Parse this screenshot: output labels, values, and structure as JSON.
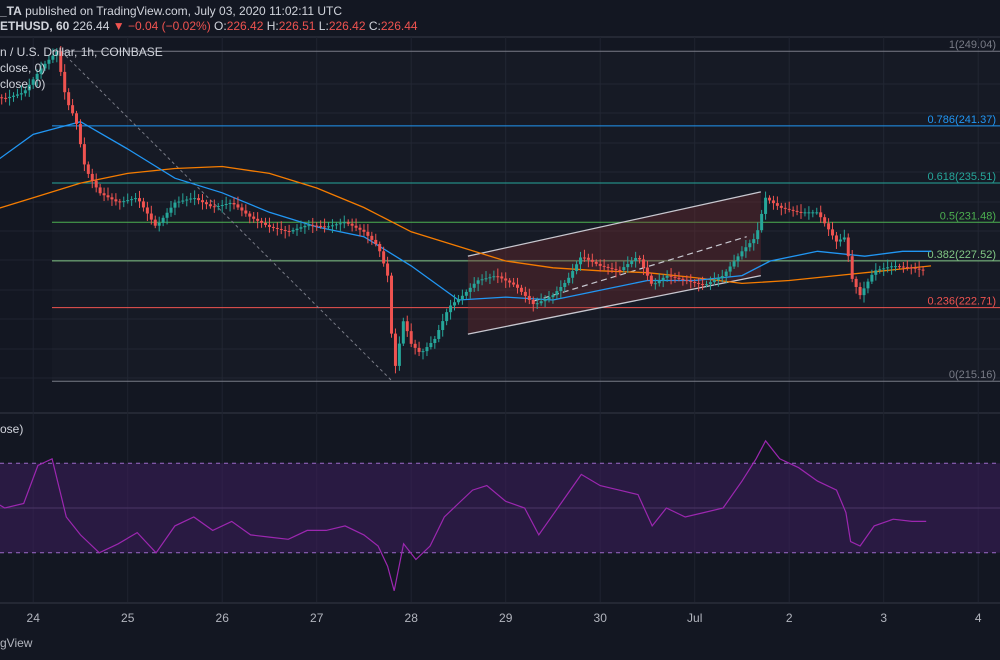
{
  "header": {
    "author_suffix": "_TA",
    "published_text": "published on TradingView.com, July 03, 2020 11:02:11 UTC",
    "symbol": "ETHUSD, 60",
    "last": "226.44",
    "change": "▼ −0.04 (−0.02%)",
    "o_label": "O:",
    "o_value": "226.42",
    "h_label": "H:",
    "h_value": "226.51",
    "l_label": "L:",
    "l_value": "226.42",
    "c_label": "C:",
    "c_value": "226.44"
  },
  "legend": {
    "title": "n / U.S. Dollar, 1h, COINBASE",
    "ma1": "close, 0)",
    "ma2": "close, 0)",
    "rsi": "ose)"
  },
  "footer": {
    "brand": "gView"
  },
  "colors": {
    "up": "#26a69a",
    "down": "#ef5350",
    "ma_blue": "#2196f3",
    "ma_orange": "#f57c00",
    "rsi_line": "#9c27b0",
    "rsi_band": "#3c1d5c",
    "channel": "#c8c8d0"
  },
  "chart_data": [
    {
      "type": "line",
      "subtype": "candlestick",
      "x_tick_labels": [
        "24",
        "25",
        "26",
        "27",
        "28",
        "29",
        "30",
        "Jul",
        "2",
        "3",
        "4"
      ],
      "ylim": [
        212,
        250.5
      ],
      "fib_levels": [
        {
          "ratio": "1",
          "value": 249.04,
          "label": "1(249.04)",
          "color": "#787b86"
        },
        {
          "ratio": "0.786",
          "value": 241.37,
          "label": "0.786(241.37)",
          "color": "#2196f3"
        },
        {
          "ratio": "0.618",
          "value": 235.51,
          "label": "0.618(235.51)",
          "color": "#26a69a"
        },
        {
          "ratio": "0.5",
          "value": 231.48,
          "label": "0.5(231.48)",
          "color": "#4caf50"
        },
        {
          "ratio": "0.382",
          "value": 227.52,
          "label": "0.382(227.52)",
          "color": "#81c784"
        },
        {
          "ratio": "0.236",
          "value": 222.71,
          "label": "0.236(222.71)",
          "color": "#ef5350"
        },
        {
          "ratio": "0",
          "value": 215.16,
          "label": "0(215.16)",
          "color": "#787b86"
        }
      ],
      "price_path": [
        [
          23.5,
          244.5
        ],
        [
          23.7,
          244.2
        ],
        [
          23.9,
          244.8
        ],
        [
          24.1,
          247.5
        ],
        [
          24.25,
          249.0
        ],
        [
          24.35,
          244.0
        ],
        [
          24.45,
          242.0
        ],
        [
          24.55,
          237.0
        ],
        [
          24.7,
          234.5
        ],
        [
          24.9,
          233.5
        ],
        [
          25.1,
          234.0
        ],
        [
          25.3,
          231.0
        ],
        [
          25.5,
          233.5
        ],
        [
          25.7,
          234.0
        ],
        [
          25.9,
          233.0
        ],
        [
          26.1,
          233.5
        ],
        [
          26.3,
          232.0
        ],
        [
          26.5,
          231.0
        ],
        [
          26.7,
          230.5
        ],
        [
          26.9,
          231.2
        ],
        [
          27.1,
          231.0
        ],
        [
          27.3,
          231.5
        ],
        [
          27.5,
          230.5
        ],
        [
          27.65,
          229.0
        ],
        [
          27.75,
          226.0
        ],
        [
          27.82,
          216.0
        ],
        [
          27.92,
          221.5
        ],
        [
          28.0,
          219.0
        ],
        [
          28.1,
          218.0
        ],
        [
          28.25,
          219.5
        ],
        [
          28.4,
          222.8
        ],
        [
          28.55,
          224.0
        ],
        [
          28.7,
          225.5
        ],
        [
          28.9,
          226.0
        ],
        [
          29.1,
          225.0
        ],
        [
          29.3,
          223.0
        ],
        [
          29.5,
          224.0
        ],
        [
          29.65,
          225.5
        ],
        [
          29.8,
          228.0
        ],
        [
          30.0,
          227.0
        ],
        [
          30.2,
          226.5
        ],
        [
          30.4,
          228.0
        ],
        [
          30.55,
          225.0
        ],
        [
          30.7,
          226.0
        ],
        [
          30.9,
          225.5
        ],
        [
          31.1,
          225.0
        ],
        [
          31.3,
          226.0
        ],
        [
          31.5,
          228.5
        ],
        [
          31.65,
          230.0
        ],
        [
          31.75,
          234.0
        ],
        [
          31.9,
          233.0
        ],
        [
          32.1,
          232.5
        ],
        [
          32.3,
          232.5
        ],
        [
          32.5,
          229.5
        ],
        [
          32.6,
          230.0
        ],
        [
          32.65,
          226.0
        ],
        [
          32.75,
          224.0
        ],
        [
          32.9,
          226.5
        ],
        [
          33.1,
          227.0
        ],
        [
          33.3,
          226.8
        ],
        [
          33.45,
          226.44
        ]
      ],
      "ma_fast": [
        [
          23.5,
          237.0
        ],
        [
          24.0,
          240.5
        ],
        [
          24.5,
          241.8
        ],
        [
          25.0,
          239.0
        ],
        [
          25.5,
          236.0
        ],
        [
          26.0,
          234.5
        ],
        [
          26.5,
          232.5
        ],
        [
          27.0,
          231.0
        ],
        [
          27.5,
          230.0
        ],
        [
          28.0,
          227.0
        ],
        [
          28.5,
          223.5
        ],
        [
          29.0,
          223.8
        ],
        [
          29.5,
          223.5
        ],
        [
          30.0,
          224.5
        ],
        [
          30.5,
          225.5
        ],
        [
          31.0,
          225.5
        ],
        [
          31.5,
          226.0
        ],
        [
          31.8,
          227.5
        ],
        [
          32.3,
          228.5
        ],
        [
          32.8,
          228.0
        ],
        [
          33.2,
          228.5
        ],
        [
          33.5,
          228.5
        ]
      ],
      "ma_slow": [
        [
          23.5,
          232.5
        ],
        [
          24.0,
          234.0
        ],
        [
          24.5,
          235.5
        ],
        [
          25.0,
          236.5
        ],
        [
          25.5,
          237.0
        ],
        [
          26.0,
          237.2
        ],
        [
          26.5,
          236.5
        ],
        [
          27.0,
          235.0
        ],
        [
          27.5,
          233.0
        ],
        [
          28.0,
          230.5
        ],
        [
          28.5,
          229.0
        ],
        [
          29.0,
          227.5
        ],
        [
          29.5,
          226.8
        ],
        [
          30.0,
          226.5
        ],
        [
          30.5,
          226.3
        ],
        [
          31.0,
          225.8
        ],
        [
          31.5,
          225.2
        ],
        [
          32.0,
          225.5
        ],
        [
          32.5,
          226.0
        ],
        [
          33.0,
          226.5
        ],
        [
          33.5,
          227.0
        ]
      ],
      "channel": {
        "upper": [
          [
            28.6,
            228.0
          ],
          [
            31.7,
            234.6
          ]
        ],
        "lower": [
          [
            28.6,
            220.0
          ],
          [
            31.7,
            226.0
          ]
        ],
        "mid": [
          [
            29.3,
            223.4
          ],
          [
            31.55,
            230.0
          ]
        ]
      },
      "diagonal": [
        [
          24.3,
          249.0
        ],
        [
          27.8,
          215.16
        ]
      ]
    },
    {
      "type": "line",
      "subtype": "rsi",
      "ylim": [
        8,
        92
      ],
      "band": [
        30,
        70
      ],
      "points": [
        [
          23.5,
          55
        ],
        [
          23.7,
          50
        ],
        [
          23.9,
          52
        ],
        [
          24.05,
          69
        ],
        [
          24.2,
          72
        ],
        [
          24.35,
          46
        ],
        [
          24.5,
          38
        ],
        [
          24.7,
          30
        ],
        [
          24.9,
          34
        ],
        [
          25.1,
          39
        ],
        [
          25.3,
          30
        ],
        [
          25.5,
          42
        ],
        [
          25.7,
          46
        ],
        [
          25.9,
          40
        ],
        [
          26.1,
          44
        ],
        [
          26.3,
          38
        ],
        [
          26.5,
          37
        ],
        [
          26.7,
          36
        ],
        [
          26.9,
          40
        ],
        [
          27.1,
          40
        ],
        [
          27.3,
          42
        ],
        [
          27.5,
          38
        ],
        [
          27.65,
          33
        ],
        [
          27.75,
          24
        ],
        [
          27.82,
          13
        ],
        [
          27.92,
          34
        ],
        [
          28.05,
          27
        ],
        [
          28.2,
          33
        ],
        [
          28.35,
          46
        ],
        [
          28.5,
          52
        ],
        [
          28.65,
          58
        ],
        [
          28.8,
          60
        ],
        [
          29.0,
          53
        ],
        [
          29.2,
          50
        ],
        [
          29.35,
          38
        ],
        [
          29.5,
          47
        ],
        [
          29.65,
          56
        ],
        [
          29.8,
          65
        ],
        [
          30.0,
          60
        ],
        [
          30.2,
          58
        ],
        [
          30.4,
          56
        ],
        [
          30.55,
          42
        ],
        [
          30.7,
          50
        ],
        [
          30.9,
          46
        ],
        [
          31.1,
          48
        ],
        [
          31.3,
          50
        ],
        [
          31.5,
          62
        ],
        [
          31.65,
          72
        ],
        [
          31.75,
          80
        ],
        [
          31.9,
          72
        ],
        [
          32.1,
          68
        ],
        [
          32.3,
          62
        ],
        [
          32.5,
          58
        ],
        [
          32.6,
          48
        ],
        [
          32.65,
          35
        ],
        [
          32.75,
          33
        ],
        [
          32.9,
          42
        ],
        [
          33.1,
          45
        ],
        [
          33.3,
          44
        ],
        [
          33.45,
          44
        ]
      ]
    }
  ]
}
